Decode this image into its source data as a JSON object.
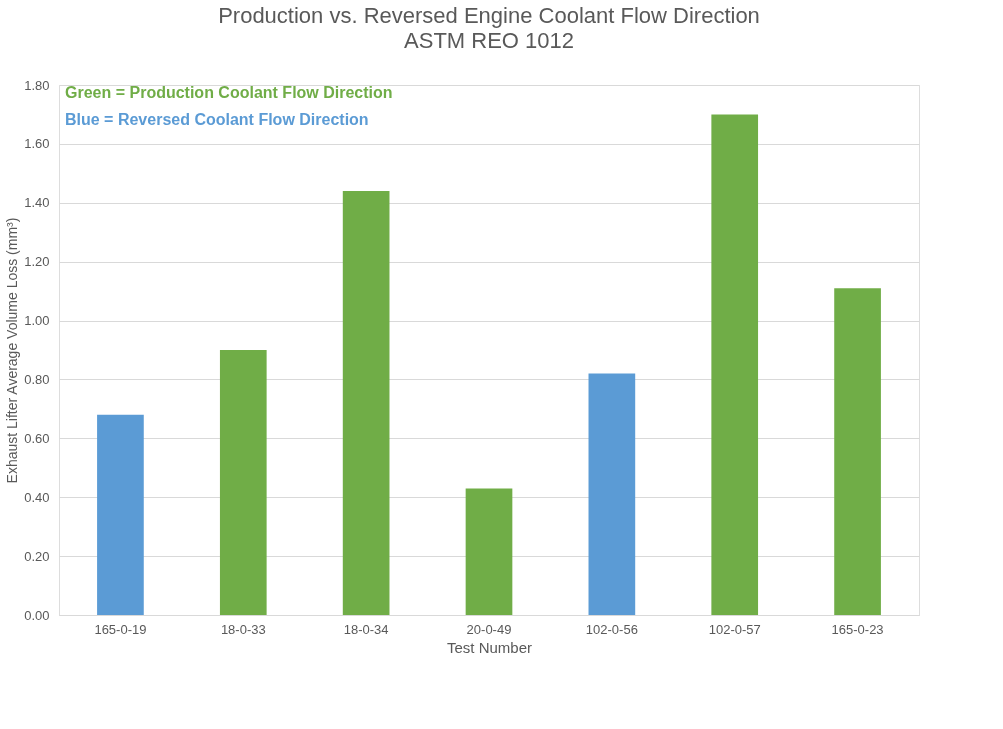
{
  "chart_data": {
    "type": "bar",
    "title": "Production vs. Reversed Engine Coolant Flow Direction",
    "subtitle": "ASTM REO 1012",
    "xlabel": "Test Number",
    "ylabel": "Exhaust Lifter Average Volume Loss (mm³)",
    "categories": [
      "165-0-19",
      "18-0-33",
      "18-0-34",
      "20-0-49",
      "102-0-56",
      "102-0-57",
      "165-0-23"
    ],
    "values": [
      0.68,
      0.9,
      1.44,
      0.43,
      0.82,
      1.7,
      1.11
    ],
    "colors": [
      "#5b9bd5",
      "#70ad47",
      "#70ad47",
      "#70ad47",
      "#5b9bd5",
      "#70ad47",
      "#70ad47"
    ],
    "ylim": [
      0,
      1.8
    ],
    "yticks": [
      {
        "value": 0,
        "label": "0.00"
      },
      {
        "value": 0.2,
        "label": "0.20"
      },
      {
        "value": 0.4,
        "label": "0.40"
      },
      {
        "value": 0.6,
        "label": "0.60"
      },
      {
        "value": 0.8,
        "label": "0.80"
      },
      {
        "value": 1.0,
        "label": "1.00"
      },
      {
        "value": 1.2,
        "label": "1.20"
      },
      {
        "value": 1.4,
        "label": "1.40"
      },
      {
        "value": 1.6,
        "label": "1.60"
      },
      {
        "value": 1.8,
        "label": "1.80"
      }
    ],
    "annotations": [
      "Green = Production Coolant Flow Direction",
      "Blue = Reversed Coolant Flow Direction"
    ],
    "grid": "y",
    "legend": false
  }
}
